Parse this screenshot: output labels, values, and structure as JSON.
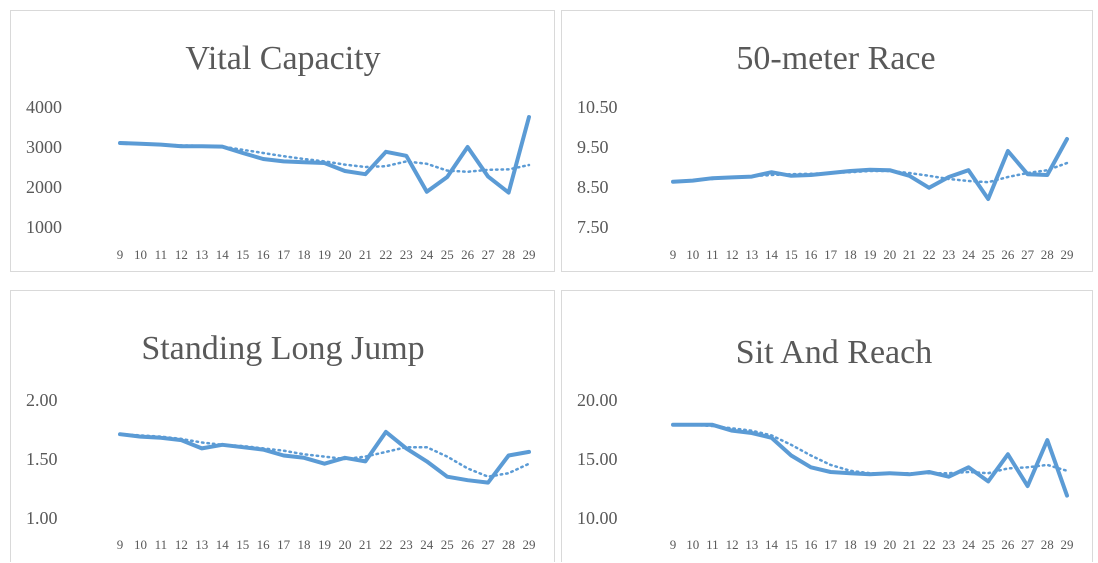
{
  "chart_data": [
    {
      "type": "line",
      "title": "Vital Capacity",
      "categories": [
        "9",
        "10",
        "11",
        "12",
        "13",
        "14",
        "15",
        "16",
        "17",
        "18",
        "19",
        "20",
        "21",
        "22",
        "23",
        "24",
        "25",
        "26",
        "27",
        "28",
        "29"
      ],
      "yticks": [
        "1000",
        "2000",
        "3000",
        "4000"
      ],
      "ylim": [
        1000,
        4000
      ],
      "series": [
        {
          "role": "data",
          "values": [
            3100,
            3080,
            3060,
            3020,
            3020,
            3010,
            2850,
            2700,
            2640,
            2620,
            2600,
            2400,
            2320,
            2880,
            2780,
            1880,
            2250,
            3000,
            2260,
            1860,
            3750
          ]
        },
        {
          "role": "trendline",
          "values": [
            3090,
            3075,
            3060,
            3040,
            3030,
            3010,
            2930,
            2850,
            2770,
            2700,
            2640,
            2560,
            2500,
            2520,
            2640,
            2580,
            2410,
            2380,
            2430,
            2440,
            2550
          ]
        }
      ],
      "grid": false,
      "legend": "none",
      "color": "#5b9bd5"
    },
    {
      "type": "line",
      "title": "50-meter Race",
      "categories": [
        "9",
        "10",
        "11",
        "12",
        "13",
        "14",
        "15",
        "16",
        "17",
        "18",
        "19",
        "20",
        "21",
        "22",
        "23",
        "24",
        "25",
        "26",
        "27",
        "28",
        "29"
      ],
      "yticks": [
        "7.50",
        "8.50",
        "9.50",
        "10.50"
      ],
      "ylim": [
        7.5,
        10.5
      ],
      "series": [
        {
          "role": "data",
          "values": [
            8.63,
            8.66,
            8.72,
            8.74,
            8.76,
            8.87,
            8.78,
            8.8,
            8.85,
            8.9,
            8.93,
            8.92,
            8.78,
            8.48,
            8.75,
            8.92,
            8.2,
            9.4,
            8.82,
            8.8,
            9.7
          ]
        },
        {
          "role": "trendline",
          "values": [
            8.63,
            8.67,
            8.7,
            8.74,
            8.77,
            8.8,
            8.82,
            8.83,
            8.85,
            8.87,
            8.9,
            8.9,
            8.85,
            8.78,
            8.7,
            8.65,
            8.62,
            8.75,
            8.85,
            8.92,
            9.1
          ]
        }
      ],
      "grid": false,
      "legend": "none",
      "color": "#5b9bd5"
    },
    {
      "type": "line",
      "title": "Standing Long Jump",
      "categories": [
        "9",
        "10",
        "11",
        "12",
        "13",
        "14",
        "15",
        "16",
        "17",
        "18",
        "19",
        "20",
        "21",
        "22",
        "23",
        "24",
        "25",
        "26",
        "27",
        "28",
        "29"
      ],
      "yticks": [
        "1.00",
        "1.50",
        "2.00"
      ],
      "ylim": [
        1.0,
        2.0
      ],
      "series": [
        {
          "role": "data",
          "values": [
            1.71,
            1.69,
            1.68,
            1.66,
            1.59,
            1.62,
            1.6,
            1.58,
            1.53,
            1.51,
            1.46,
            1.51,
            1.48,
            1.73,
            1.59,
            1.48,
            1.35,
            1.32,
            1.3,
            1.53,
            1.56
          ]
        },
        {
          "role": "trendline",
          "values": [
            1.71,
            1.7,
            1.69,
            1.67,
            1.64,
            1.62,
            1.61,
            1.59,
            1.57,
            1.54,
            1.52,
            1.5,
            1.52,
            1.56,
            1.6,
            1.6,
            1.52,
            1.42,
            1.35,
            1.38,
            1.46
          ]
        }
      ],
      "grid": false,
      "legend": "none",
      "color": "#5b9bd5"
    },
    {
      "type": "line",
      "title": "Sit And Reach",
      "categories": [
        "9",
        "10",
        "11",
        "12",
        "13",
        "14",
        "15",
        "16",
        "17",
        "18",
        "19",
        "20",
        "21",
        "22",
        "23",
        "24",
        "25",
        "26",
        "27",
        "28",
        "29"
      ],
      "yticks": [
        "10.00",
        "15.00",
        "20.00"
      ],
      "ylim": [
        10.0,
        20.0
      ],
      "series": [
        {
          "role": "data",
          "values": [
            17.9,
            17.9,
            17.9,
            17.4,
            17.2,
            16.8,
            15.3,
            14.3,
            13.9,
            13.8,
            13.7,
            13.8,
            13.7,
            13.9,
            13.5,
            14.3,
            13.1,
            15.4,
            12.7,
            16.6,
            11.9
          ]
        },
        {
          "role": "trendline",
          "values": [
            17.9,
            17.9,
            17.8,
            17.6,
            17.4,
            17.0,
            16.2,
            15.3,
            14.5,
            14.0,
            13.8,
            13.8,
            13.8,
            13.8,
            13.8,
            13.9,
            13.8,
            14.2,
            14.3,
            14.5,
            14.0
          ]
        }
      ],
      "grid": false,
      "legend": "none",
      "color": "#5b9bd5"
    }
  ]
}
